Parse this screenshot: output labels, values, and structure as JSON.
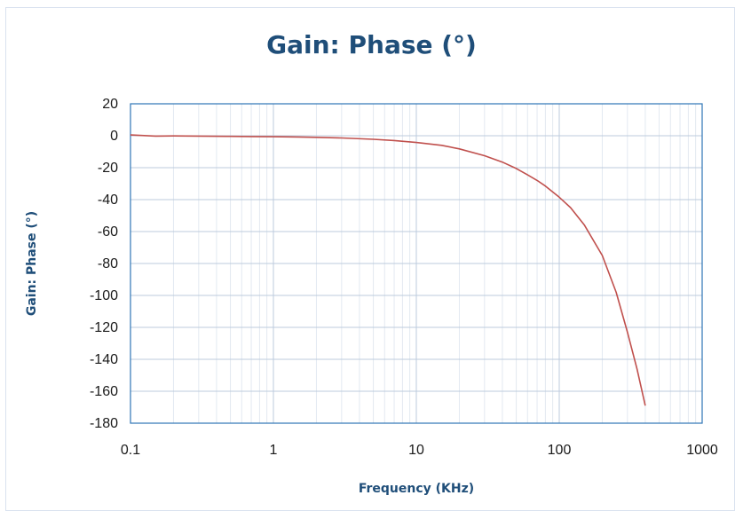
{
  "chart_data": {
    "type": "line",
    "title": "Gain: Phase (°)",
    "xlabel": "Frequency (KHz)",
    "ylabel": "Gain: Phase (°)",
    "x_scale": "log",
    "xlim": [
      0.1,
      1000
    ],
    "ylim": [
      -180,
      20
    ],
    "x_ticks": [
      "0.1",
      "1",
      "10",
      "100",
      "1000"
    ],
    "y_ticks": [
      "20",
      "0",
      "-20",
      "-40",
      "-60",
      "-80",
      "-100",
      "-120",
      "-140",
      "-160",
      "-180"
    ],
    "grid": true,
    "legend": "none",
    "series": [
      {
        "color": "#c0504d",
        "x": [
          0.1,
          0.15,
          0.2,
          0.3,
          0.5,
          0.7,
          1,
          1.5,
          2,
          3,
          5,
          7,
          10,
          15,
          20,
          30,
          40,
          50,
          60,
          70,
          80,
          100,
          120,
          150,
          200,
          250,
          300,
          350,
          400
        ],
        "y": [
          0.5,
          -0.2,
          -0.1,
          -0.2,
          -0.4,
          -0.5,
          -0.6,
          -0.8,
          -1,
          -1.4,
          -2.2,
          -3,
          -4.2,
          -6,
          -8.2,
          -12.5,
          -16.5,
          -20.5,
          -24.5,
          -28,
          -31.5,
          -38.5,
          -45,
          -56,
          -75,
          -98,
          -123,
          -146,
          -169
        ]
      }
    ]
  }
}
